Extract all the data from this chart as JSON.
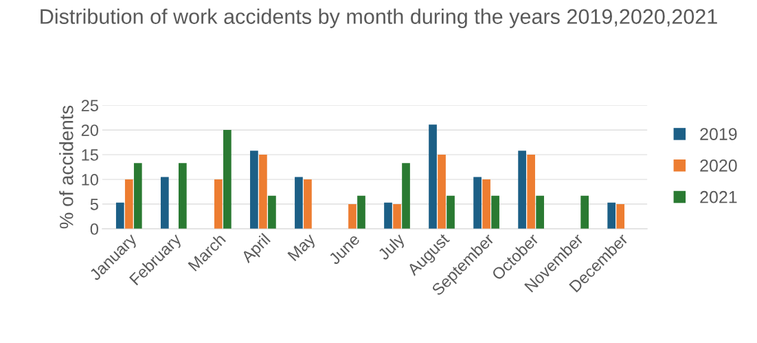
{
  "chart_data": {
    "type": "bar",
    "title": "Distribution of work accidents by month during the years 2019,2020,2021",
    "ylabel": "% of accidents",
    "categories": [
      "January",
      "February",
      "March",
      "April",
      "May",
      "June",
      "July",
      "August",
      "September",
      "October",
      "November",
      "December"
    ],
    "series": [
      {
        "name": "2019",
        "color": "#1c5f86",
        "values": [
          5.3,
          10.5,
          0,
          15.8,
          10.5,
          0,
          5.3,
          21.1,
          10.5,
          15.8,
          0,
          5.3
        ]
      },
      {
        "name": "2020",
        "color": "#ed7d31",
        "values": [
          10,
          0,
          10,
          15,
          10,
          5,
          5,
          15,
          10,
          15,
          0,
          5
        ]
      },
      {
        "name": "2021",
        "color": "#2a7a32",
        "values": [
          13.3,
          13.3,
          20,
          6.7,
          0,
          6.7,
          13.3,
          6.7,
          6.7,
          6.7,
          6.7,
          0
        ]
      }
    ],
    "ylim": [
      0,
      25
    ],
    "yticks": [
      0,
      5,
      10,
      15,
      20,
      25
    ],
    "grid": "y",
    "legend": "right"
  }
}
